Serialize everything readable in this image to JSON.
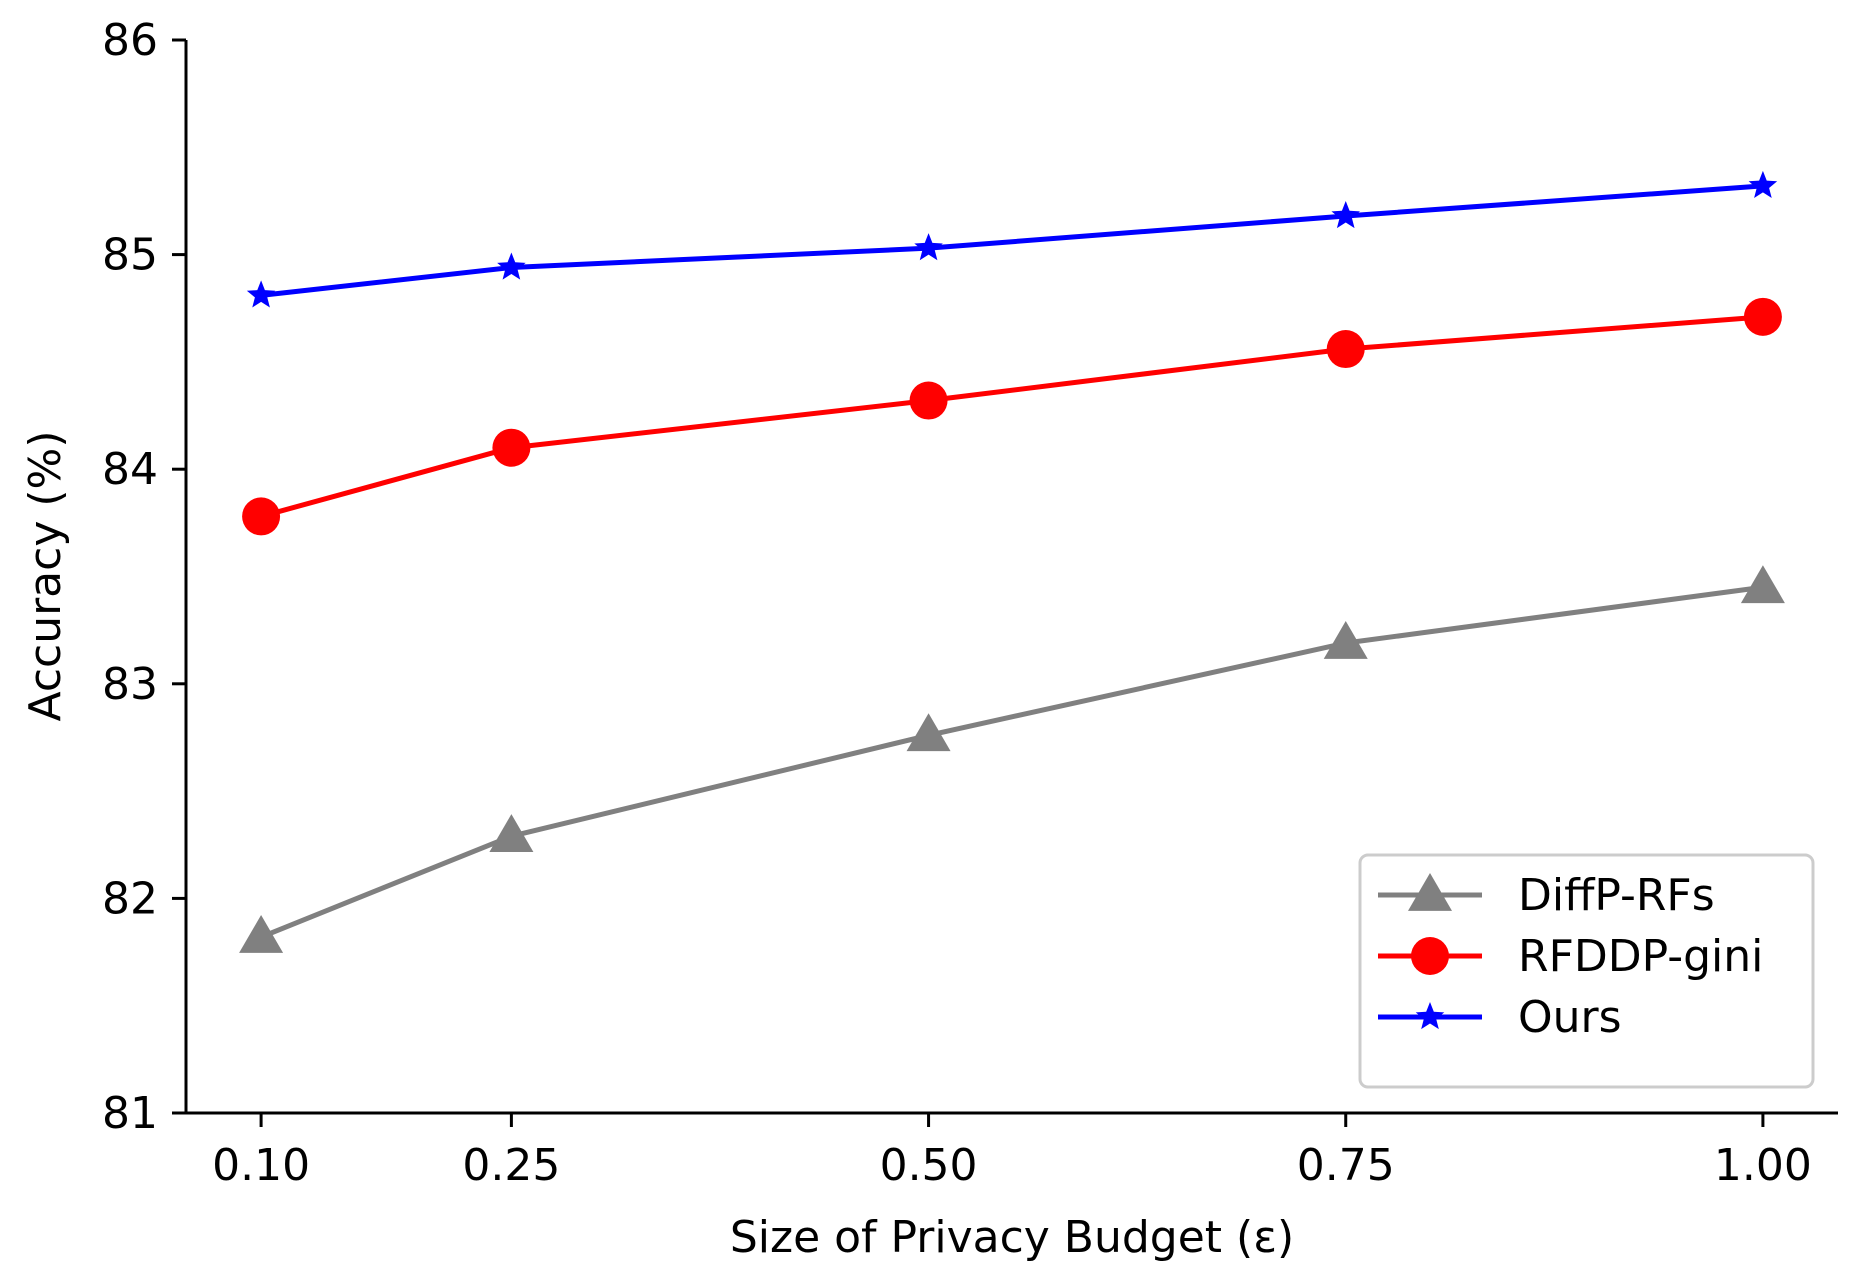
{
  "chart_data": {
    "type": "line",
    "title": "",
    "xlabel": "Size of Privacy Budget (ε)",
    "ylabel": "Accuracy (%)",
    "x": [
      0.1,
      0.25,
      0.5,
      0.75,
      1.0
    ],
    "x_tick_labels": [
      "0.10",
      "0.25",
      "0.50",
      "0.75",
      "1.00"
    ],
    "xlim": [
      0.055,
      1.045
    ],
    "ylim": [
      81,
      86
    ],
    "y_ticks": [
      81,
      82,
      83,
      84,
      85,
      86
    ],
    "y_tick_labels": [
      "81",
      "82",
      "83",
      "84",
      "85",
      "86"
    ],
    "grid": false,
    "legend_position": "bottom-right",
    "series": [
      {
        "name": "DiffP-RFs",
        "color": "#808080",
        "marker": "triangle",
        "values": [
          81.82,
          82.29,
          82.76,
          83.19,
          83.45
        ]
      },
      {
        "name": "RFDDP-gini",
        "color": "#ff0000",
        "marker": "circle",
        "values": [
          83.78,
          84.1,
          84.32,
          84.56,
          84.71
        ]
      },
      {
        "name": "Ours",
        "color": "#0000ff",
        "marker": "star",
        "values": [
          84.81,
          84.94,
          85.03,
          85.18,
          85.32
        ]
      }
    ]
  }
}
